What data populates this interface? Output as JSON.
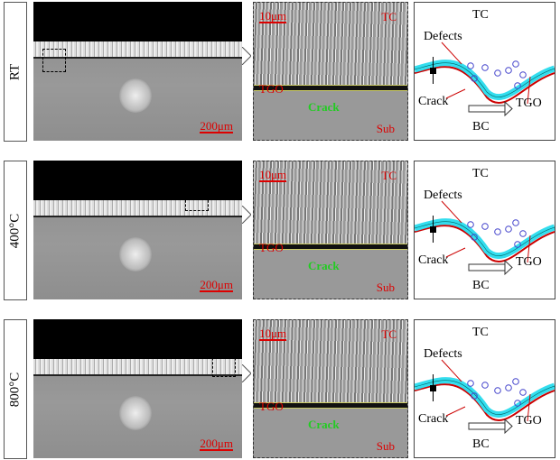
{
  "rows": [
    {
      "label": "RT",
      "scale_low": "200μm",
      "scale_high": "10μm",
      "tc": "TC",
      "tgo": "TGO",
      "crack": "Crack",
      "sub": "Sub"
    },
    {
      "label": "400°C",
      "scale_low": "200μm",
      "scale_high": "10μm",
      "tc": "TC",
      "tgo": "TGO",
      "crack": "Crack",
      "sub": "Sub"
    },
    {
      "label": "800°C",
      "scale_low": "200μm",
      "scale_high": "10μm",
      "tc": "TC",
      "tgo": "TGO",
      "crack": "Crack",
      "sub": "Sub"
    }
  ],
  "schematic": {
    "tc": "TC",
    "bc": "BC",
    "defects": "Defects",
    "crack": "Crack",
    "tgo": "TGO"
  },
  "colors": {
    "label_red": "#dd0000",
    "crack_green": "#22cc22",
    "tgo_cyan": "#33ddee",
    "crack_red": "#cc0000",
    "defect_blue": "#4444cc"
  }
}
